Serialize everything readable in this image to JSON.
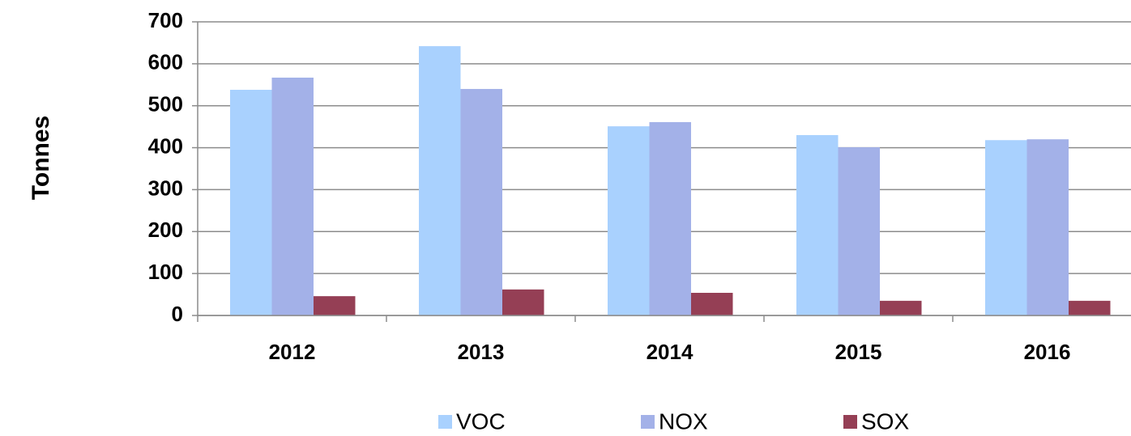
{
  "chart_data": {
    "type": "bar",
    "y_label": "Tonnes",
    "categories": [
      "2012",
      "2013",
      "2014",
      "2015",
      "2016"
    ],
    "series": [
      {
        "name": "VOC",
        "color": "#a9d1fe",
        "values": [
          538,
          642,
          451,
          430,
          418
        ]
      },
      {
        "name": "NOX",
        "color": "#a3b1e8",
        "values": [
          567,
          540,
          461,
          401,
          420
        ]
      },
      {
        "name": "SOX",
        "color": "#953f55",
        "values": [
          46,
          62,
          54,
          35,
          35
        ]
      }
    ],
    "ylim": [
      0,
      700
    ],
    "yticks": [
      0,
      100,
      200,
      300,
      400,
      500,
      600,
      700
    ],
    "grid": true,
    "legend": "bottom"
  }
}
